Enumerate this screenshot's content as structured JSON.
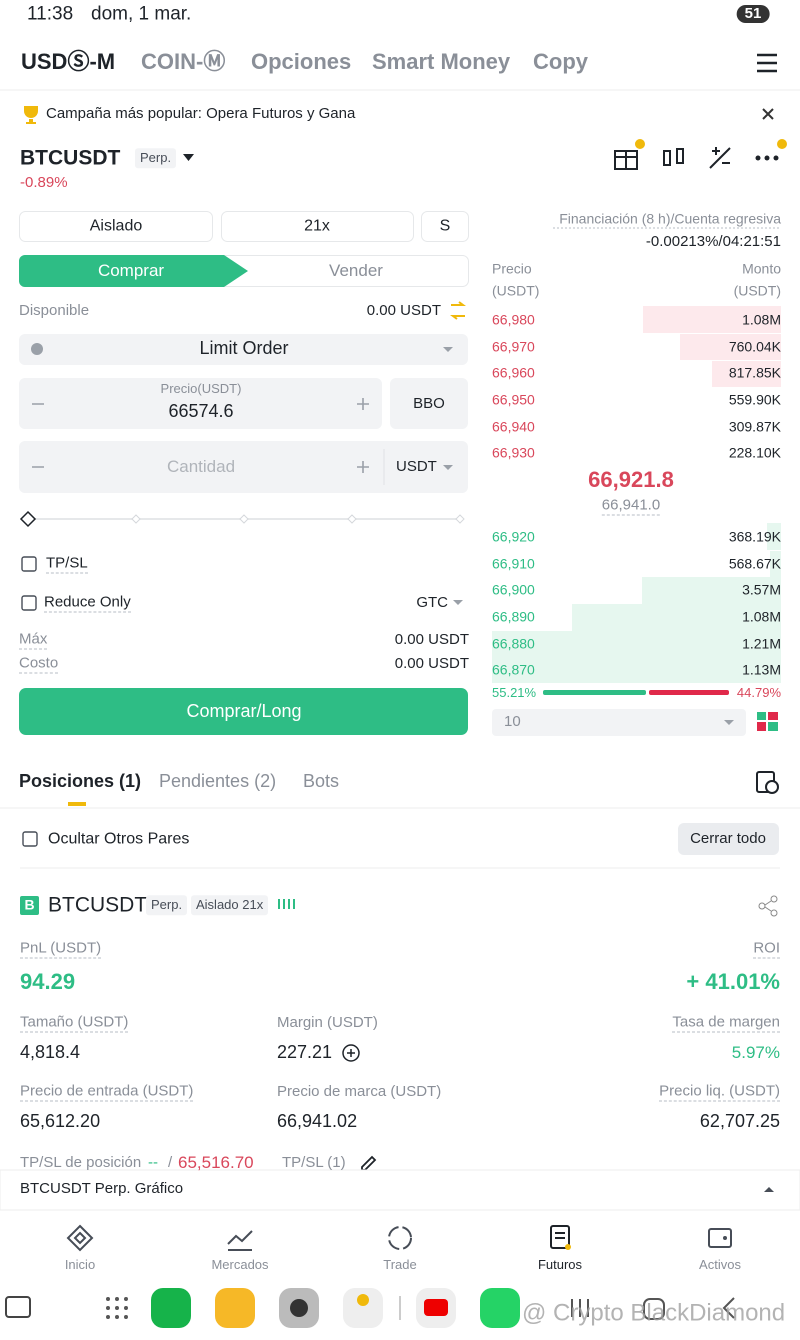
{
  "status_bar": {
    "time": "11:38",
    "date": "dom, 1 mar.",
    "battery": "51"
  },
  "tabs": [
    "USDⓈ-M",
    "COIN-Ⓜ",
    "Opciones",
    "Smart Money",
    "Copy"
  ],
  "banner": "Campaña más popular: Opera Futuros y Gana",
  "symbol": {
    "name": "BTCUSDT",
    "type": "Perp.",
    "change": "-0.89%"
  },
  "order_form": {
    "margin_mode": "Aislado",
    "leverage": "21x",
    "mode": "S",
    "buy": "Comprar",
    "sell": "Vender",
    "available_label": "Disponible",
    "available": "0.00 USDT",
    "order_type": "Limit Order",
    "price_label": "Precio(USDT)",
    "price": "66574.6",
    "bbo": "BBO",
    "quantity": "Cantidad",
    "quantity_unit": "USDT",
    "tp_sl": "TP/SL",
    "reduce_only": "Reduce Only",
    "time_in_force": "GTC",
    "max_label": "Máx",
    "max": "0.00 USDT",
    "cost_label": "Costo",
    "cost": "0.00 USDT",
    "submit": "Comprar/Long"
  },
  "order_book": {
    "funding_label": "Financiación (8 h)/Cuenta regresiva",
    "funding": "-0.00213%/04:21:51",
    "price_header": [
      "Precio",
      "(USDT)"
    ],
    "amount_header": [
      "Monto",
      "(USDT)"
    ],
    "asks": [
      {
        "price": "66,980",
        "amount": "1.08M"
      },
      {
        "price": "66,970",
        "amount": "760.04K"
      },
      {
        "price": "66,960",
        "amount": "817.85K"
      },
      {
        "price": "66,950",
        "amount": "559.90K"
      },
      {
        "price": "66,940",
        "amount": "309.87K"
      },
      {
        "price": "66,930",
        "amount": "228.10K"
      }
    ],
    "last_price": "66,921.8",
    "mark_price": "66,941.0",
    "bids": [
      {
        "price": "66,920",
        "amount": "368.19K"
      },
      {
        "price": "66,910",
        "amount": "568.67K"
      },
      {
        "price": "66,900",
        "amount": "3.57M"
      },
      {
        "price": "66,890",
        "amount": "1.08M"
      },
      {
        "price": "66,880",
        "amount": "1.21M"
      },
      {
        "price": "66,870",
        "amount": "1.13M"
      }
    ],
    "buy_ratio": "55.21%",
    "sell_ratio": "44.79%",
    "depth": "10"
  },
  "positions": {
    "tabs": [
      "Posiciones (1)",
      "Pendientes (2)",
      "Bots"
    ],
    "hide_others": "Ocultar Otros Pares",
    "close_all": "Cerrar todo",
    "position": {
      "badge": "B",
      "symbol": "BTCUSDT",
      "type": "Perp.",
      "margin": "Aislado 21x",
      "pnl_label": "PnL (USDT)",
      "pnl": "94.29",
      "roi_label": "ROI",
      "roi": "+ 41.01%",
      "size_label": "Tamaño (USDT)",
      "size": "4,818.4",
      "margin_label": "Margin (USDT)",
      "margin_value": "227.21",
      "margin_rate_label": "Tasa de margen",
      "margin_rate": "5.97%",
      "entry_label": "Precio de entrada (USDT)",
      "entry": "65,612.20",
      "mark_label": "Precio de marca (USDT)",
      "mark": "66,941.02",
      "liq_label": "Precio liq. (USDT)",
      "liq": "62,707.25",
      "tpsl_label": "TP/SL de posición",
      "tp": "--",
      "tpsl_sep": "/",
      "sl": "65,516.70",
      "tpsl_orders": "TP/SL (1)"
    }
  },
  "chart_bar": "BTCUSDT Perp. Gráfico",
  "nav": [
    "Inicio",
    "Mercados",
    "Trade",
    "Futuros",
    "Activos"
  ],
  "watermark": "@ Crypto BlackDiamond"
}
